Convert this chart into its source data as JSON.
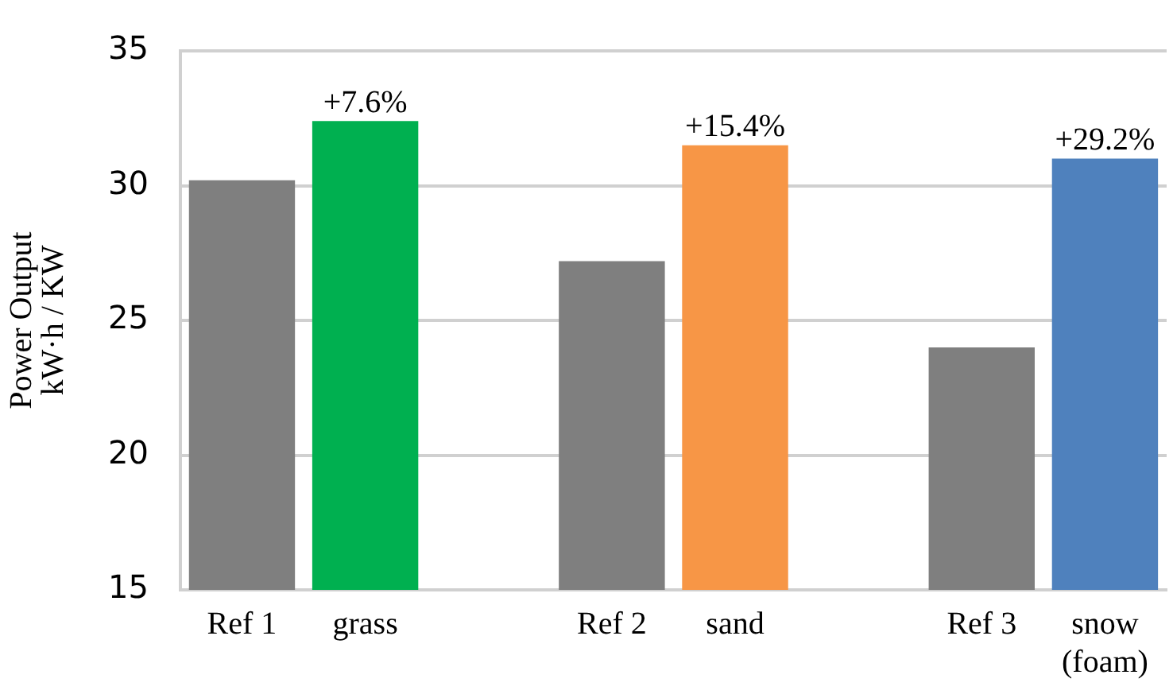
{
  "chart_data": {
    "type": "bar",
    "ylabel": "Power Output\nkW·h / KW",
    "categories": [
      "Ref 1",
      "grass",
      null,
      "Ref 2",
      "sand",
      null,
      "Ref 3",
      "snow\n(foam)"
    ],
    "values": [
      30.2,
      32.4,
      null,
      27.2,
      31.5,
      null,
      24.0,
      31.0
    ],
    "colors": [
      "#7f7f7f",
      "#00b050",
      "#7f7f7f",
      "#7f7f7f",
      "#f79646",
      "#7f7f7f",
      "#7f7f7f",
      "#4f81bd"
    ],
    "annotations": [
      {
        "text": "+7.6%",
        "x": "grass",
        "y": 32.4
      },
      {
        "text": "+15.4%",
        "x": "sand",
        "y": 31.5
      },
      {
        "text": "+29.2%",
        "x": "snow\n(foam)",
        "y": 31.0
      }
    ],
    "ylim": [
      15,
      35
    ],
    "yticks": [
      15,
      20,
      25,
      30,
      35
    ],
    "grid": "y",
    "legend": false
  }
}
